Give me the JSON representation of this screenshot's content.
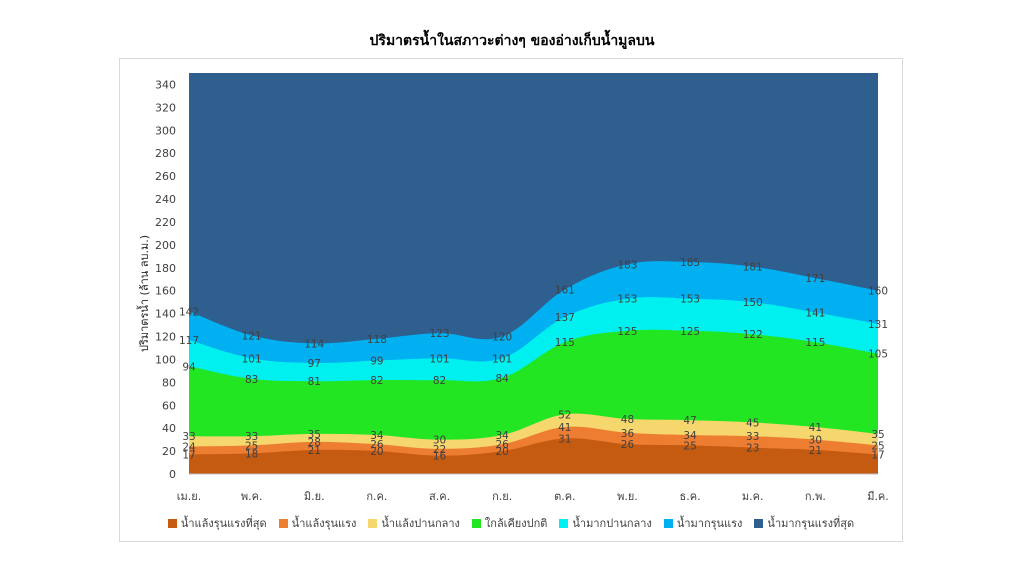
{
  "chart_data": {
    "type": "area",
    "stacked": false,
    "title": "ปริมาตรน้ำในสภาวะต่างๆ ของอ่างเก็บน้ำมูลบน",
    "xlabel": "",
    "ylabel": "ปริมาตรน้ำ (ล้าน ลบ.ม.)",
    "ylim": [
      0,
      350
    ],
    "yticks": [
      0,
      20,
      40,
      60,
      80,
      100,
      120,
      140,
      160,
      180,
      200,
      220,
      240,
      260,
      280,
      300,
      320,
      340
    ],
    "grid": false,
    "legend_position": "bottom",
    "categories": [
      "เม.ย.",
      "พ.ค.",
      "มิ.ย.",
      "ก.ค.",
      "ส.ค.",
      "ก.ย.",
      "ต.ค.",
      "พ.ย.",
      "ธ.ค.",
      "ม.ค.",
      "ก.พ.",
      "มี.ค."
    ],
    "series": [
      {
        "name": "น้ำมากรุนแรงที่สุด",
        "color": "#2e5f8f",
        "values": [
          350,
          350,
          350,
          350,
          350,
          350,
          350,
          350,
          350,
          350,
          350,
          350
        ],
        "labels": false
      },
      {
        "name": "น้ำมากรุนแรง",
        "color": "#00b0f0",
        "values": [
          142,
          121,
          114,
          118,
          123,
          120,
          161,
          183,
          185,
          181,
          171,
          160
        ],
        "labels": true
      },
      {
        "name": "น้ำมากปานกลาง",
        "color": "#00f0f0",
        "values": [
          117,
          101,
          97,
          99,
          101,
          101,
          137,
          153,
          153,
          150,
          141,
          131
        ],
        "labels": true
      },
      {
        "name": "ใกล้เคียงปกติ",
        "color": "#22e622",
        "values": [
          94,
          83,
          81,
          82,
          82,
          84,
          115,
          125,
          125,
          122,
          115,
          105
        ],
        "labels": true
      },
      {
        "name": "น้ำแล้งปานกลาง",
        "color": "#f5d76e",
        "values": [
          33,
          33,
          35,
          34,
          30,
          34,
          52,
          48,
          47,
          45,
          41,
          35
        ],
        "labels": true
      },
      {
        "name": "น้ำแล้งรุนแรง",
        "color": "#ed7d31",
        "values": [
          24,
          25,
          28,
          26,
          22,
          26,
          41,
          36,
          34,
          33,
          30,
          25
        ],
        "labels": true
      },
      {
        "name": "น้ำแล้งรุนแรงที่สุด",
        "color": "#c55a11",
        "values": [
          17,
          18,
          21,
          20,
          16,
          20,
          31,
          26,
          25,
          23,
          21,
          17
        ],
        "labels": true
      }
    ]
  }
}
